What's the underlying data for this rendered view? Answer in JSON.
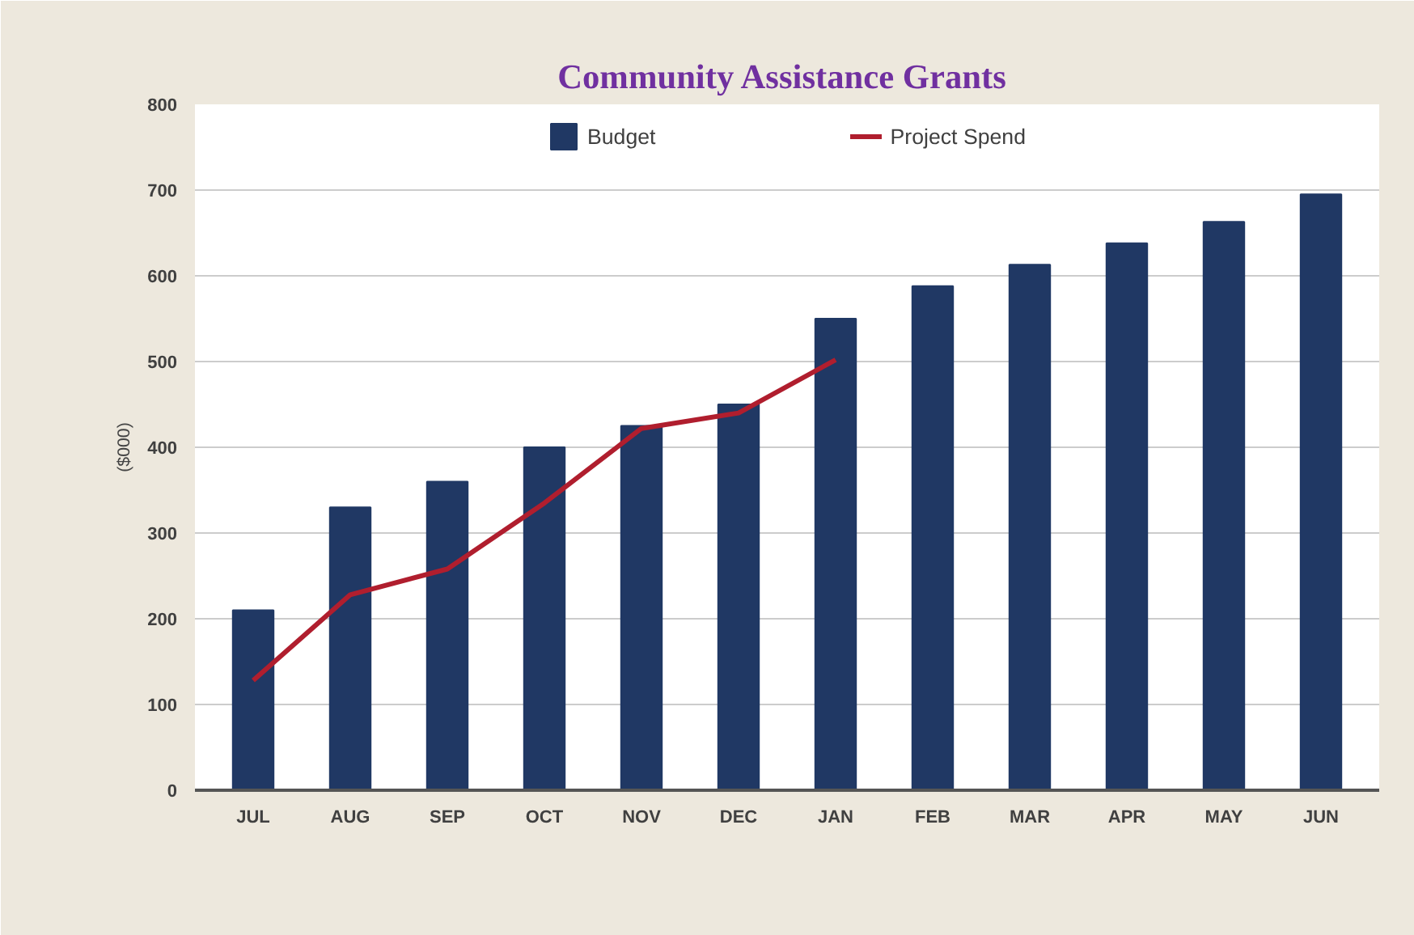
{
  "chart_data": {
    "type": "bar",
    "title": "Community Assistance  Grants",
    "ylabel": "($000)",
    "categories": [
      "JUL",
      "AUG",
      "SEP",
      "OCT",
      "NOV",
      "DEC",
      "JAN",
      "FEB",
      "MAR",
      "APR",
      "MAY",
      "JUN"
    ],
    "series": [
      {
        "name": "Budget",
        "color": "#203864",
        "values": [
          210,
          330,
          360,
          400,
          425,
          450,
          550,
          588,
          613,
          638,
          663,
          695
        ]
      },
      {
        "name": "Project Spend",
        "type": "line",
        "color": "#b01e2e",
        "values": [
          128,
          228,
          258,
          335,
          422,
          440,
          502,
          null,
          null,
          null,
          null,
          null
        ]
      }
    ],
    "ylim": [
      0,
      800
    ],
    "yticks": [
      0,
      100,
      200,
      300,
      400,
      500,
      600,
      700,
      800
    ],
    "grid": "y",
    "legend": "top",
    "line_style": "solid",
    "marker": "none"
  }
}
